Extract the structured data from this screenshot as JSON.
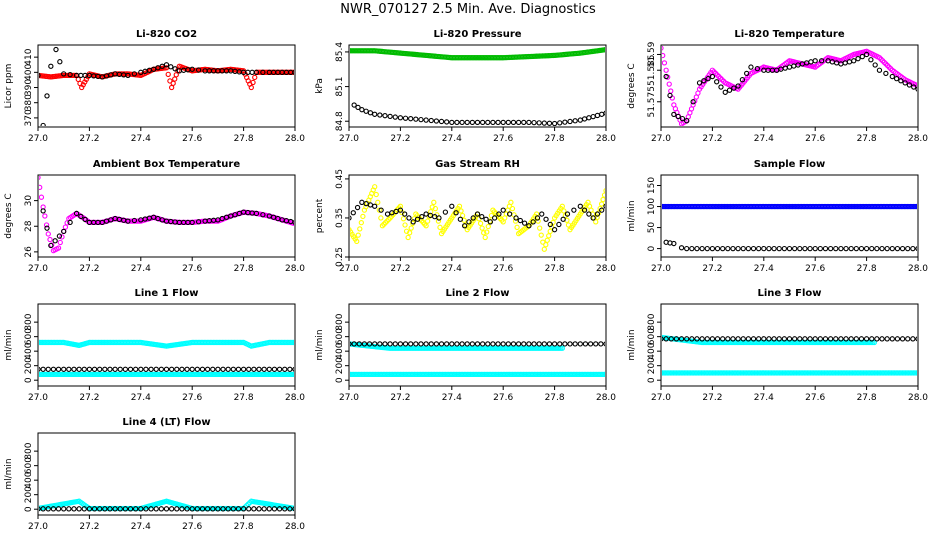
{
  "page": {
    "title": "NWR_070127  2.5 Min. Ave. Diagnostics"
  },
  "chart_data": [
    {
      "type": "scatter",
      "title": "Li-820 CO2",
      "ylabel": "Licor ppm",
      "xlim": [
        27.0,
        28.0
      ],
      "ylim": [
        364,
        418
      ],
      "xticks": [
        27.0,
        27.2,
        27.4,
        27.6,
        27.8,
        28.0
      ],
      "yticks": [
        370,
        380,
        390,
        400,
        410
      ],
      "series": [
        {
          "name": "co2 (red)",
          "color": "#ff0000",
          "x": [
            27.0,
            27.05,
            27.1,
            27.15,
            27.17,
            27.2,
            27.25,
            27.3,
            27.35,
            27.4,
            27.45,
            27.5,
            27.52,
            27.55,
            27.6,
            27.65,
            27.7,
            27.75,
            27.8,
            27.83,
            27.85,
            27.9,
            27.95,
            28.0
          ],
          "y": [
            398,
            397,
            398,
            398,
            390,
            399,
            397,
            399,
            399,
            398,
            402,
            403,
            390,
            404,
            401,
            402,
            401,
            402,
            401,
            390,
            400,
            400,
            400,
            400
          ]
        },
        {
          "name": "co2 (black)",
          "color": "#000000",
          "x": [
            27.0,
            27.02,
            27.05,
            27.07,
            27.1,
            27.15,
            27.2,
            27.25,
            27.3,
            27.35,
            27.4,
            27.45,
            27.5,
            27.55,
            27.6,
            27.65,
            27.7,
            27.75,
            27.8,
            27.85,
            27.9,
            27.95,
            28.0
          ],
          "y": [
            398,
            365,
            404,
            415,
            399,
            398,
            398,
            397,
            399,
            398,
            400,
            402,
            405,
            401,
            402,
            401,
            401,
            401,
            400,
            400,
            400,
            400,
            400
          ]
        }
      ]
    },
    {
      "type": "scatter",
      "title": "Li-820 Pressure",
      "ylabel": "kPa",
      "xlim": [
        27.0,
        28.0
      ],
      "ylim": [
        84.75,
        85.46
      ],
      "xticks": [
        27.0,
        27.2,
        27.4,
        27.6,
        27.8,
        28.0
      ],
      "yticks": [
        84.8,
        85.1,
        85.4
      ],
      "series": [
        {
          "name": "pressure (green)",
          "color": "#00bb00",
          "x": [
            27.0,
            27.1,
            27.2,
            27.3,
            27.4,
            27.5,
            27.6,
            27.7,
            27.8,
            27.9,
            28.0
          ],
          "y": [
            85.41,
            85.41,
            85.39,
            85.37,
            85.35,
            85.35,
            85.35,
            85.36,
            85.37,
            85.39,
            85.42
          ]
        },
        {
          "name": "pressure (black)",
          "color": "#000000",
          "x": [
            27.02,
            27.05,
            27.1,
            27.2,
            27.3,
            27.4,
            27.5,
            27.6,
            27.7,
            27.8,
            27.9,
            27.95,
            28.0
          ],
          "y": [
            84.94,
            84.9,
            84.86,
            84.83,
            84.81,
            84.79,
            84.79,
            84.79,
            84.79,
            84.78,
            84.81,
            84.84,
            84.87
          ]
        }
      ]
    },
    {
      "type": "scatter",
      "title": "Li-820 Temperature",
      "ylabel": "degrees C",
      "xlim": [
        27.0,
        28.0
      ],
      "ylim": [
        51.567,
        51.593
      ],
      "xticks": [
        27.0,
        27.2,
        27.4,
        27.6,
        27.8,
        28.0
      ],
      "yticks": [
        51.575,
        51.585,
        51.59
      ],
      "series": [
        {
          "name": "temperature (magenta)",
          "color": "#ff00ff",
          "x": [
            27.0,
            27.02,
            27.05,
            27.08,
            27.1,
            27.15,
            27.2,
            27.25,
            27.3,
            27.35,
            27.4,
            27.45,
            27.5,
            27.55,
            27.6,
            27.65,
            27.7,
            27.75,
            27.8,
            27.85,
            27.9,
            27.95,
            28.0
          ],
          "y": [
            51.592,
            51.585,
            51.574,
            51.568,
            51.569,
            51.579,
            51.585,
            51.581,
            51.579,
            51.584,
            51.586,
            51.585,
            51.588,
            51.587,
            51.586,
            51.589,
            51.588,
            51.59,
            51.591,
            51.589,
            51.585,
            51.582,
            51.58
          ]
        },
        {
          "name": "temperature (black)",
          "color": "#000000",
          "x": [
            27.02,
            27.05,
            27.1,
            27.15,
            27.2,
            27.25,
            27.3,
            27.35,
            27.4,
            27.45,
            27.5,
            27.55,
            27.6,
            27.65,
            27.7,
            27.75,
            27.8,
            27.85,
            27.9,
            27.95,
            28.0
          ],
          "y": [
            51.583,
            51.571,
            51.569,
            51.581,
            51.583,
            51.578,
            51.58,
            51.586,
            51.585,
            51.585,
            51.586,
            51.587,
            51.588,
            51.588,
            51.587,
            51.588,
            51.59,
            51.585,
            51.583,
            51.581,
            51.579
          ]
        }
      ]
    },
    {
      "type": "scatter",
      "title": "Ambient Box Temperature",
      "ylabel": "degrees C",
      "xlim": [
        27.0,
        28.0
      ],
      "ylim": [
        25.6,
        32.0
      ],
      "xticks": [
        27.0,
        27.2,
        27.4,
        27.6,
        27.8,
        28.0
      ],
      "yticks": [
        26,
        28,
        30
      ],
      "series": [
        {
          "name": "ambient (magenta)",
          "color": "#ff00ff",
          "x": [
            27.0,
            27.02,
            27.04,
            27.06,
            27.08,
            27.1,
            27.12,
            27.15,
            27.18,
            27.2,
            27.25,
            27.3,
            27.35,
            27.4,
            27.45,
            27.5,
            27.55,
            27.6,
            27.65,
            27.7,
            27.75,
            27.8,
            27.85,
            27.9,
            27.95,
            28.0
          ],
          "y": [
            31.8,
            29.5,
            27.4,
            26.1,
            26.3,
            27.6,
            28.6,
            29.0,
            28.6,
            28.3,
            28.3,
            28.6,
            28.4,
            28.4,
            28.7,
            28.4,
            28.3,
            28.3,
            28.4,
            28.4,
            28.8,
            29.1,
            29.0,
            28.8,
            28.5,
            28.2
          ]
        },
        {
          "name": "ambient (black)",
          "color": "#000000",
          "x": [
            27.02,
            27.05,
            27.1,
            27.15,
            27.2,
            27.25,
            27.3,
            27.35,
            27.4,
            27.45,
            27.5,
            27.55,
            27.6,
            27.65,
            27.7,
            27.75,
            27.8,
            27.85,
            27.9,
            27.95,
            28.0
          ],
          "y": [
            29.2,
            26.5,
            27.6,
            29.0,
            28.3,
            28.3,
            28.6,
            28.4,
            28.5,
            28.7,
            28.4,
            28.3,
            28.3,
            28.4,
            28.5,
            28.8,
            29.1,
            29.0,
            28.8,
            28.5,
            28.3
          ]
        }
      ]
    },
    {
      "type": "scatter",
      "title": "Gas Stream RH",
      "ylabel": "percent",
      "xlim": [
        27.0,
        28.0
      ],
      "ylim": [
        0.25,
        0.46
      ],
      "xticks": [
        27.0,
        27.2,
        27.4,
        27.6,
        27.8,
        28.0
      ],
      "yticks": [
        0.25,
        0.35,
        0.45
      ],
      "series": [
        {
          "name": "rh (yellow)",
          "color": "#ffff00",
          "x": [
            27.0,
            27.03,
            27.06,
            27.1,
            27.13,
            27.16,
            27.2,
            27.23,
            27.26,
            27.3,
            27.33,
            27.36,
            27.4,
            27.43,
            27.46,
            27.5,
            27.53,
            27.56,
            27.6,
            27.63,
            27.66,
            27.7,
            27.73,
            27.76,
            27.8,
            27.83,
            27.86,
            27.9,
            27.93,
            27.96,
            28.0
          ],
          "y": [
            0.32,
            0.29,
            0.37,
            0.43,
            0.33,
            0.35,
            0.38,
            0.3,
            0.36,
            0.33,
            0.39,
            0.31,
            0.35,
            0.38,
            0.32,
            0.36,
            0.3,
            0.37,
            0.34,
            0.39,
            0.31,
            0.33,
            0.36,
            0.27,
            0.35,
            0.38,
            0.32,
            0.36,
            0.39,
            0.34,
            0.42
          ]
        },
        {
          "name": "rh (black)",
          "color": "#000000",
          "x": [
            27.0,
            27.05,
            27.1,
            27.15,
            27.2,
            27.25,
            27.3,
            27.35,
            27.4,
            27.45,
            27.5,
            27.55,
            27.6,
            27.65,
            27.7,
            27.75,
            27.8,
            27.85,
            27.9,
            27.95,
            28.0
          ],
          "y": [
            0.35,
            0.39,
            0.38,
            0.36,
            0.37,
            0.34,
            0.36,
            0.35,
            0.38,
            0.33,
            0.36,
            0.34,
            0.37,
            0.35,
            0.33,
            0.36,
            0.32,
            0.36,
            0.38,
            0.35,
            0.38
          ]
        }
      ]
    },
    {
      "type": "scatter",
      "title": "Sample Flow",
      "ylabel": "ml/min",
      "xlim": [
        27.0,
        28.0
      ],
      "ylim": [
        -20,
        175
      ],
      "xticks": [
        27.0,
        27.2,
        27.4,
        27.6,
        27.8,
        28.0
      ],
      "yticks": [
        0,
        50,
        100,
        150
      ],
      "series": [
        {
          "name": "sample flow (blue)",
          "color": "#0000ff",
          "x": [
            27.0,
            27.1,
            27.2,
            27.3,
            27.4,
            27.5,
            27.6,
            27.7,
            27.8,
            27.9,
            28.0
          ],
          "y": [
            100,
            100,
            100,
            100,
            100,
            100,
            100,
            100,
            100,
            100,
            100
          ]
        },
        {
          "name": "sample flow (black)",
          "color": "#000000",
          "x": [
            27.02,
            27.05,
            27.08,
            27.1,
            27.2,
            27.3,
            27.4,
            27.5,
            27.6,
            27.7,
            27.8,
            27.9,
            28.0
          ],
          "y": [
            15,
            12,
            2,
            0,
            0,
            0,
            0,
            0,
            0,
            0,
            0,
            0,
            0
          ]
        }
      ]
    },
    {
      "type": "scatter",
      "title": "Line 1 Flow",
      "ylabel": "ml/min",
      "xlim": [
        27.0,
        28.0
      ],
      "ylim": [
        -80,
        1050
      ],
      "xticks": [
        27.0,
        27.2,
        27.4,
        27.6,
        27.8,
        28.0
      ],
      "yticks": [
        0,
        200,
        400,
        600,
        800
      ],
      "series": [
        {
          "name": "line 1 upper (cyan)",
          "color": "#00ffff",
          "x": [
            27.0,
            27.1,
            27.16,
            27.2,
            27.3,
            27.4,
            27.5,
            27.6,
            27.7,
            27.8,
            27.83,
            27.9,
            28.0
          ],
          "y": [
            520,
            520,
            480,
            520,
            520,
            520,
            470,
            520,
            520,
            520,
            470,
            520,
            520
          ]
        },
        {
          "name": "line 1 lower (cyan)",
          "color": "#00ffff",
          "x": [
            27.0,
            27.2,
            27.4,
            27.6,
            27.8,
            28.0
          ],
          "y": [
            80,
            80,
            80,
            80,
            80,
            80
          ]
        },
        {
          "name": "line 1 (black)",
          "color": "#000000",
          "x": [
            27.0,
            27.1,
            27.2,
            27.3,
            27.4,
            27.5,
            27.6,
            27.7,
            27.8,
            27.9,
            28.0
          ],
          "y": [
            150,
            150,
            150,
            150,
            150,
            150,
            150,
            150,
            150,
            150,
            150
          ]
        }
      ]
    },
    {
      "type": "scatter",
      "title": "Line 2 Flow",
      "ylabel": "ml/min",
      "xlim": [
        27.0,
        28.0
      ],
      "ylim": [
        -80,
        1050
      ],
      "xticks": [
        27.0,
        27.2,
        27.4,
        27.6,
        27.8,
        28.0
      ],
      "yticks": [
        0,
        200,
        400,
        600,
        800
      ],
      "series": [
        {
          "name": "line 2 lower (cyan)",
          "color": "#00ffff",
          "x": [
            27.0,
            27.2,
            27.4,
            27.6,
            27.8,
            28.0
          ],
          "y": [
            80,
            80,
            80,
            80,
            80,
            80
          ]
        },
        {
          "name": "line 2 upper (cyan)",
          "color": "#00ffff",
          "x": [
            27.0,
            27.16,
            27.5,
            27.83
          ],
          "y": [
            500,
            440,
            440,
            440
          ]
        },
        {
          "name": "line 2 (black)",
          "color": "#000000",
          "x": [
            27.0,
            27.1,
            27.2,
            27.3,
            27.4,
            27.5,
            27.6,
            27.7,
            27.8,
            27.9,
            28.0
          ],
          "y": [
            500,
            500,
            500,
            500,
            500,
            500,
            500,
            500,
            500,
            500,
            500
          ]
        }
      ]
    },
    {
      "type": "scatter",
      "title": "Line 3 Flow",
      "ylabel": "ml/min",
      "xlim": [
        27.0,
        28.0
      ],
      "ylim": [
        -80,
        1050
      ],
      "xticks": [
        27.0,
        27.2,
        27.4,
        27.6,
        27.8,
        28.0
      ],
      "yticks": [
        0,
        200,
        400,
        600,
        800
      ],
      "series": [
        {
          "name": "line 3 lower (cyan)",
          "color": "#00ffff",
          "x": [
            27.0,
            27.2,
            27.4,
            27.6,
            27.8,
            28.0
          ],
          "y": [
            100,
            100,
            100,
            100,
            100,
            100
          ]
        },
        {
          "name": "line 3 upper (cyan)",
          "color": "#00ffff",
          "x": [
            27.0,
            27.16,
            27.5,
            27.83
          ],
          "y": [
            590,
            520,
            520,
            520
          ]
        },
        {
          "name": "line 3 (black)",
          "color": "#000000",
          "x": [
            27.0,
            27.1,
            27.2,
            27.3,
            27.4,
            27.5,
            27.6,
            27.7,
            27.8,
            27.9,
            28.0
          ],
          "y": [
            570,
            570,
            570,
            570,
            570,
            570,
            570,
            570,
            570,
            570,
            570
          ]
        }
      ]
    },
    {
      "type": "scatter",
      "title": "Line 4 (LT) Flow",
      "ylabel": "ml/min",
      "xlim": [
        27.0,
        28.0
      ],
      "ylim": [
        -80,
        1050
      ],
      "xticks": [
        27.0,
        27.2,
        27.4,
        27.6,
        27.8,
        28.0
      ],
      "yticks": [
        0,
        200,
        400,
        600,
        800
      ],
      "series": [
        {
          "name": "line 4 (cyan)",
          "color": "#00ffff",
          "x": [
            27.0,
            27.16,
            27.2,
            27.4,
            27.5,
            27.6,
            27.8,
            27.83,
            28.0
          ],
          "y": [
            10,
            110,
            10,
            10,
            110,
            10,
            10,
            110,
            10
          ]
        },
        {
          "name": "line 4 (black)",
          "color": "#000000",
          "x": [
            27.0,
            27.1,
            27.2,
            27.3,
            27.4,
            27.5,
            27.6,
            27.7,
            27.8,
            27.9,
            28.0
          ],
          "y": [
            5,
            5,
            5,
            5,
            5,
            5,
            5,
            5,
            5,
            5,
            5
          ]
        }
      ]
    }
  ]
}
